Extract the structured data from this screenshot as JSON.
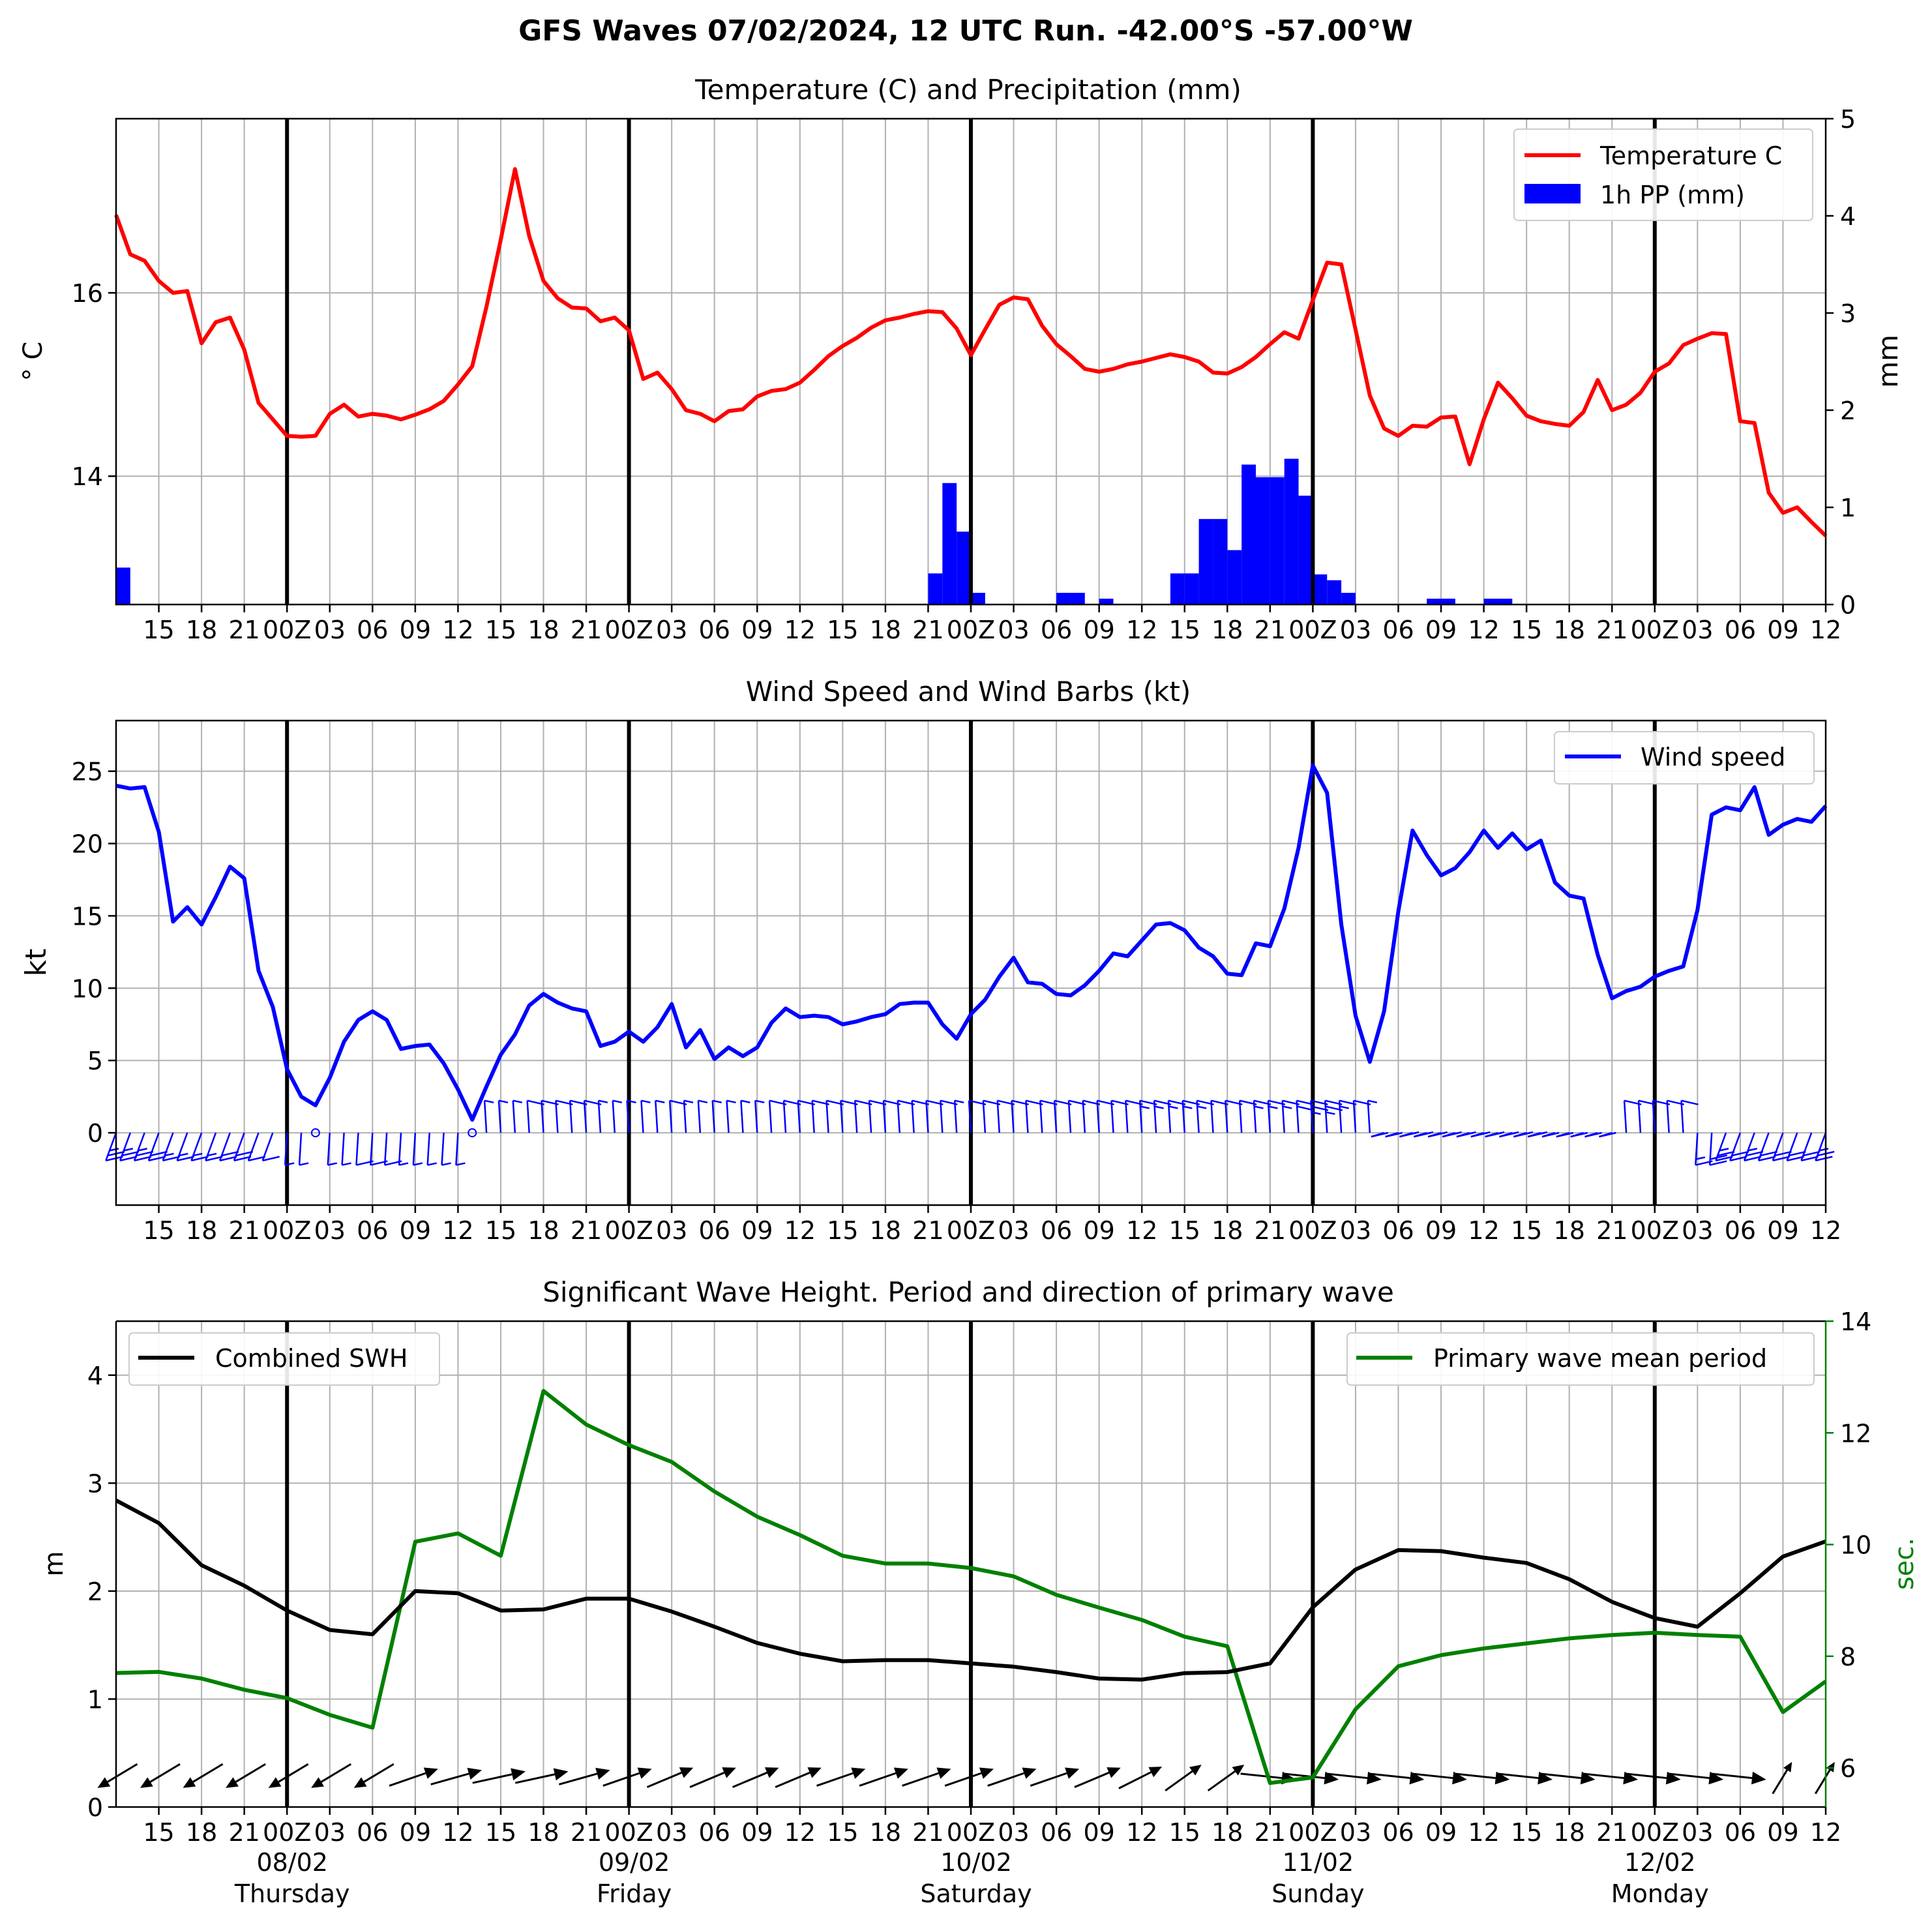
{
  "suptitle": "GFS Waves 07/02/2024, 12 UTC Run. -42.00°S -57.00°W",
  "x_axis": {
    "start": "2024-02-07 12:00 UTC",
    "end": "2024-02-12 12:00 UTC",
    "tick_labels": [
      "15",
      "18",
      "21",
      "00Z",
      "03",
      "06",
      "09",
      "12",
      "15",
      "18",
      "21",
      "00Z",
      "03",
      "06",
      "09",
      "12",
      "15",
      "18",
      "21",
      "00Z",
      "03",
      "06",
      "09",
      "12",
      "15",
      "18",
      "21",
      "00Z",
      "03",
      "06",
      "09",
      "12",
      "15",
      "18",
      "21",
      "00Z",
      "03",
      "06",
      "09",
      "12"
    ],
    "day_labels": [
      {
        "date": "08/02",
        "day": "Thursday"
      },
      {
        "date": "09/02",
        "day": "Friday"
      },
      {
        "date": "10/02",
        "day": "Saturday"
      },
      {
        "date": "11/02",
        "day": "Sunday"
      },
      {
        "date": "12/02",
        "day": "Monday"
      }
    ]
  },
  "chart_data": [
    {
      "type": "line",
      "title": "Temperature (C) and Precipitation (mm)",
      "ylabel": "$^\\circ$C",
      "ylabel_display": "° C",
      "ylim": [
        12.6,
        17.9
      ],
      "yticks": [
        14,
        16
      ],
      "y2label": "mm",
      "y2lim": [
        0,
        5
      ],
      "y2ticks": [
        0,
        1,
        2,
        3,
        4,
        5
      ],
      "grid": true,
      "legend": "top-right",
      "series": [
        {
          "name": "Temperature C",
          "color": "#ff0000",
          "hours": [
            0,
            1,
            2,
            3,
            4,
            5,
            6,
            7,
            8,
            9,
            10,
            11,
            12,
            13,
            14,
            15,
            16,
            17,
            18,
            19,
            20,
            21,
            22,
            23,
            24,
            25,
            26,
            27,
            28,
            29,
            30,
            31,
            32,
            33,
            34,
            35,
            36,
            37,
            38,
            39,
            40,
            41,
            42,
            43,
            44,
            45,
            46,
            47,
            48,
            49,
            50,
            51,
            52,
            53,
            54,
            55,
            56,
            57,
            58,
            59,
            60,
            61,
            62,
            63,
            64,
            65,
            66,
            67,
            68,
            69,
            70,
            71,
            72,
            73,
            74,
            75,
            76,
            77,
            78,
            79,
            80,
            81,
            82,
            83,
            84,
            85,
            86,
            87,
            88,
            89,
            90,
            91,
            92,
            93,
            94,
            95,
            96,
            97,
            98,
            99,
            100,
            101,
            102,
            103,
            104,
            105,
            106,
            107,
            108,
            109,
            110,
            111,
            112,
            113,
            114,
            115,
            116,
            117,
            118,
            119,
            120
          ],
          "values": [
            16.85,
            16.42,
            16.35,
            16.13,
            16.0,
            16.02,
            15.45,
            15.68,
            15.73,
            15.38,
            14.8,
            14.62,
            14.44,
            14.43,
            14.44,
            14.68,
            14.78,
            14.65,
            14.68,
            14.66,
            14.62,
            14.67,
            14.73,
            14.82,
            15.0,
            15.2,
            15.85,
            16.58,
            17.35,
            16.62,
            16.13,
            15.94,
            15.84,
            15.83,
            15.69,
            15.73,
            15.59,
            15.06,
            15.13,
            14.95,
            14.72,
            14.68,
            14.6,
            14.71,
            14.73,
            14.87,
            14.93,
            14.95,
            15.02,
            15.16,
            15.31,
            15.42,
            15.51,
            15.62,
            15.7,
            15.73,
            15.77,
            15.8,
            15.79,
            15.61,
            15.32,
            15.6,
            15.87,
            15.95,
            15.93,
            15.64,
            15.44,
            15.31,
            15.17,
            15.14,
            15.17,
            15.22,
            15.25,
            15.29,
            15.33,
            15.3,
            15.25,
            15.13,
            15.12,
            15.19,
            15.3,
            15.44,
            15.57,
            15.5,
            15.92,
            16.33,
            16.31,
            15.6,
            14.88,
            14.52,
            14.44,
            14.55,
            14.54,
            14.64,
            14.65,
            14.13,
            14.62,
            15.02,
            14.85,
            14.66,
            14.6,
            14.57,
            14.55,
            14.7,
            15.05,
            14.72,
            14.78,
            14.91,
            15.14,
            15.23,
            15.43,
            15.5,
            15.56,
            15.55,
            14.6,
            14.58,
            13.82,
            13.6,
            13.66,
            13.5,
            13.35
          ],
          "display_precision_note": ""
        },
        {
          "name": "1h PP (mm)",
          "type": "bar",
          "color": "#0000ff",
          "hours": [
            0,
            57,
            58,
            59,
            60,
            66,
            67,
            69,
            74,
            75,
            76,
            77,
            78,
            79,
            80,
            81,
            82,
            83,
            84,
            85,
            86,
            87,
            88,
            92,
            93,
            96,
            97
          ],
          "values": [
            0.38,
            0.32,
            1.25,
            0.75,
            0.12,
            0.12,
            0.12,
            0.06,
            0.32,
            0.32,
            0.88,
            0.88,
            0.56,
            1.44,
            1.31,
            1.31,
            1.5,
            1.12,
            0.31,
            0.25,
            0.12,
            0.0,
            0.0,
            0.06,
            0.06,
            0.06,
            0.06
          ]
        }
      ]
    },
    {
      "type": "line",
      "title": "Wind Speed and Wind Barbs (kt)",
      "ylabel": "kt",
      "ylim": [
        -5,
        28.5
      ],
      "yticks": [
        0,
        5,
        10,
        15,
        20,
        25
      ],
      "grid": true,
      "legend": "top-right",
      "series": [
        {
          "name": "Wind speed",
          "color": "#0000ff",
          "hours": [
            0,
            1,
            2,
            3,
            4,
            5,
            6,
            7,
            8,
            9,
            10,
            11,
            12,
            13,
            14,
            15,
            16,
            17,
            18,
            19,
            20,
            21,
            22,
            23,
            24,
            25,
            26,
            27,
            28,
            29,
            30,
            31,
            32,
            33,
            34,
            35,
            36,
            37,
            38,
            39,
            40,
            41,
            42,
            43,
            44,
            45,
            46,
            47,
            48,
            49,
            50,
            51,
            52,
            53,
            54,
            55,
            56,
            57,
            58,
            59,
            60,
            61,
            62,
            63,
            64,
            65,
            66,
            67,
            68,
            69,
            70,
            71,
            72,
            73,
            74,
            75,
            76,
            77,
            78,
            79,
            80,
            81,
            82,
            83,
            84,
            85,
            86,
            87,
            88,
            89,
            90,
            91,
            92,
            93,
            94,
            95,
            96,
            97,
            98,
            99,
            100,
            101,
            102,
            103,
            104,
            105,
            106,
            107,
            108,
            109,
            110,
            111,
            112,
            113,
            114,
            115,
            116,
            117,
            118,
            119,
            120
          ],
          "values": [
            24.0,
            23.8,
            23.9,
            20.8,
            14.6,
            15.6,
            14.4,
            16.3,
            18.4,
            17.6,
            11.2,
            8.7,
            4.4,
            2.5,
            1.9,
            3.8,
            6.3,
            7.8,
            8.4,
            7.8,
            5.8,
            6.0,
            6.1,
            4.8,
            3.0,
            0.9,
            3.2,
            5.4,
            6.8,
            8.8,
            9.6,
            9.0,
            8.6,
            8.4,
            6.0,
            6.3,
            7.0,
            6.3,
            7.3,
            8.9,
            5.9,
            7.1,
            5.1,
            5.9,
            5.3,
            5.9,
            7.6,
            8.6,
            8.0,
            8.1,
            8.0,
            7.5,
            7.7,
            8.0,
            8.2,
            8.9,
            9.0,
            9.0,
            7.5,
            6.5,
            8.2,
            9.2,
            10.8,
            12.1,
            10.4,
            10.3,
            9.6,
            9.5,
            10.2,
            11.2,
            12.4,
            12.2,
            13.3,
            14.4,
            14.5,
            14.0,
            12.8,
            12.2,
            11.0,
            10.9,
            13.1,
            12.9,
            15.5,
            19.7,
            25.4,
            23.5,
            14.4,
            8.1,
            4.9,
            8.4,
            15.3,
            20.9,
            19.2,
            17.8,
            18.3,
            19.4,
            20.9,
            19.7,
            20.7,
            19.6,
            20.2,
            17.3,
            16.4,
            16.2,
            12.3,
            9.3,
            9.8,
            10.1,
            10.8,
            11.2,
            11.5,
            15.4,
            22.0,
            22.5,
            22.3,
            23.9,
            20.6,
            21.3,
            21.7,
            21.5,
            22.6
          ]
        }
      ]
    },
    {
      "type": "line",
      "title": "Significant Wave Height. Period and direction of primary wave",
      "ylabel": "m",
      "ylim": [
        0,
        4.5
      ],
      "yticks": [
        0,
        1,
        2,
        3,
        4
      ],
      "y2label": "sec.",
      "y2lim": [
        5.3,
        14
      ],
      "y2ticks": [
        6,
        8,
        10,
        12,
        14
      ],
      "grid": true,
      "legend": "top-left / top-right",
      "series": [
        {
          "name": "Combined SWH",
          "color": "#000000",
          "axis": "left",
          "hours": [
            0,
            3,
            6,
            9,
            12,
            15,
            18,
            21,
            24,
            27,
            30,
            33,
            36,
            39,
            42,
            45,
            48,
            51,
            54,
            57,
            60,
            63,
            66,
            69,
            72,
            75,
            78,
            81,
            84,
            87,
            90,
            93,
            96,
            99,
            102,
            105,
            108,
            111,
            114,
            117,
            120
          ],
          "values": [
            2.84,
            2.63,
            2.24,
            2.05,
            1.82,
            1.64,
            1.6,
            2.0,
            1.98,
            1.82,
            1.83,
            1.93,
            1.93,
            1.81,
            1.67,
            1.52,
            1.42,
            1.35,
            1.36,
            1.36,
            1.33,
            1.3,
            1.25,
            1.19,
            1.18,
            1.24,
            1.25,
            1.33,
            1.85,
            2.2,
            2.38,
            2.37,
            2.31,
            2.26,
            2.11,
            1.9,
            1.75,
            1.67,
            1.98,
            2.32,
            2.46
          ]
        },
        {
          "name": "Primary wave mean period",
          "color": "#008000",
          "axis": "right",
          "hours": [
            0,
            3,
            6,
            9,
            12,
            15,
            18,
            21,
            24,
            27,
            30,
            33,
            36,
            39,
            42,
            45,
            48,
            51,
            54,
            57,
            60,
            63,
            66,
            69,
            72,
            75,
            78,
            81,
            84,
            87,
            90,
            93,
            96,
            99,
            102,
            105,
            108,
            111,
            114,
            117,
            120
          ],
          "values": [
            7.7,
            7.72,
            7.6,
            7.4,
            7.25,
            6.95,
            6.72,
            10.05,
            10.2,
            9.8,
            12.75,
            12.15,
            11.78,
            11.48,
            10.95,
            10.5,
            10.17,
            9.8,
            9.66,
            9.66,
            9.58,
            9.43,
            9.1,
            8.87,
            8.65,
            8.35,
            8.18,
            5.73,
            5.83,
            7.05,
            7.82,
            8.02,
            8.14,
            8.23,
            8.32,
            8.38,
            8.42,
            8.38,
            8.35,
            7.0,
            7.55
          ]
        }
      ],
      "wave_direction_arrows": {
        "hours": [
          0,
          3,
          6,
          9,
          12,
          15,
          18,
          21,
          24,
          27,
          30,
          33,
          36,
          39,
          42,
          45,
          48,
          51,
          54,
          57,
          60,
          63,
          66,
          69,
          72,
          75,
          78,
          81,
          84,
          87,
          90,
          93,
          96,
          99,
          102,
          105,
          108,
          111,
          114,
          117,
          120
        ],
        "direction_deg": [
          225,
          225,
          225,
          225,
          225,
          225,
          225,
          60,
          65,
          70,
          70,
          65,
          60,
          55,
          55,
          55,
          55,
          60,
          60,
          60,
          60,
          60,
          60,
          55,
          50,
          40,
          40,
          100,
          100,
          100,
          100,
          100,
          100,
          100,
          100,
          100,
          100,
          100,
          100,
          20,
          20
        ],
        "color": "#000000"
      }
    }
  ]
}
